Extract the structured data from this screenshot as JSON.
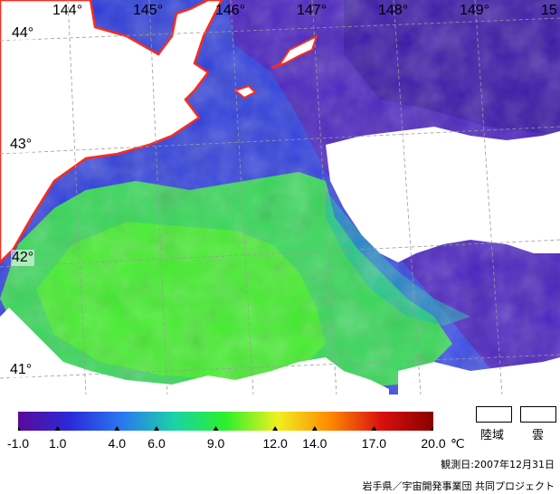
{
  "map": {
    "longitude_labels": [
      "144°",
      "145°",
      "146°",
      "147°",
      "148°",
      "149°",
      "15"
    ],
    "latitude_labels": [
      "44°",
      "43°",
      "42°",
      "41°"
    ],
    "colors": {
      "coastline": "#ff2a1a",
      "land_and_cloud": "#ffffff",
      "grid": "#9a9a9a"
    }
  },
  "colorbar": {
    "tick_labels": [
      "-1.0",
      "1.0",
      "4.0",
      "6.0",
      "9.0",
      "12.0",
      "14.0",
      "17.0",
      "20.0"
    ],
    "tick_values": [
      -1.0,
      1.0,
      4.0,
      6.0,
      9.0,
      12.0,
      14.0,
      17.0,
      20.0
    ],
    "range": [
      -1.0,
      20.0
    ],
    "unit": "℃",
    "colors": [
      "#5a0a9a",
      "#2a2ad8",
      "#2a78f0",
      "#1ad2a8",
      "#2cf02c",
      "#f0f020",
      "#ff8a00",
      "#d81010",
      "#8a0000"
    ]
  },
  "legend": {
    "land_label": "陸域",
    "cloud_label": "雲"
  },
  "observation_date": "観測日:2007年12月31日",
  "credit": "岩手県／宇宙開発事業団 共同プロジェクト"
}
